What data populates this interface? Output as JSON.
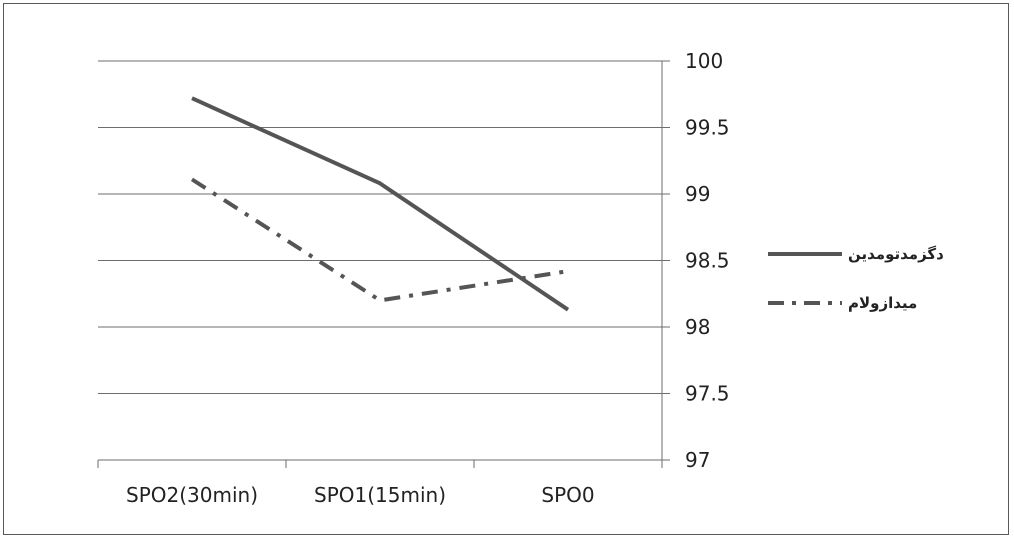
{
  "chart_data": {
    "type": "line",
    "title": "",
    "xlabel": "",
    "ylabel": "",
    "categories": [
      "SPO2(30min)",
      "SPO1(15min)",
      "SPO0"
    ],
    "ylim": [
      97,
      100
    ],
    "yticks": [
      "97",
      "97.5",
      "98",
      "98.5",
      "99",
      "99.5",
      "100"
    ],
    "y_axis_side": "right",
    "grid": true,
    "legend_position": "right",
    "series": [
      {
        "name": "دگزمدتومدین",
        "values": [
          99.72,
          99.08,
          98.13
        ],
        "style": "solid",
        "color": "#555555"
      },
      {
        "name": "میدازولام",
        "values": [
          99.11,
          98.2,
          98.42
        ],
        "style": "dashdot",
        "color": "#555555"
      }
    ]
  }
}
